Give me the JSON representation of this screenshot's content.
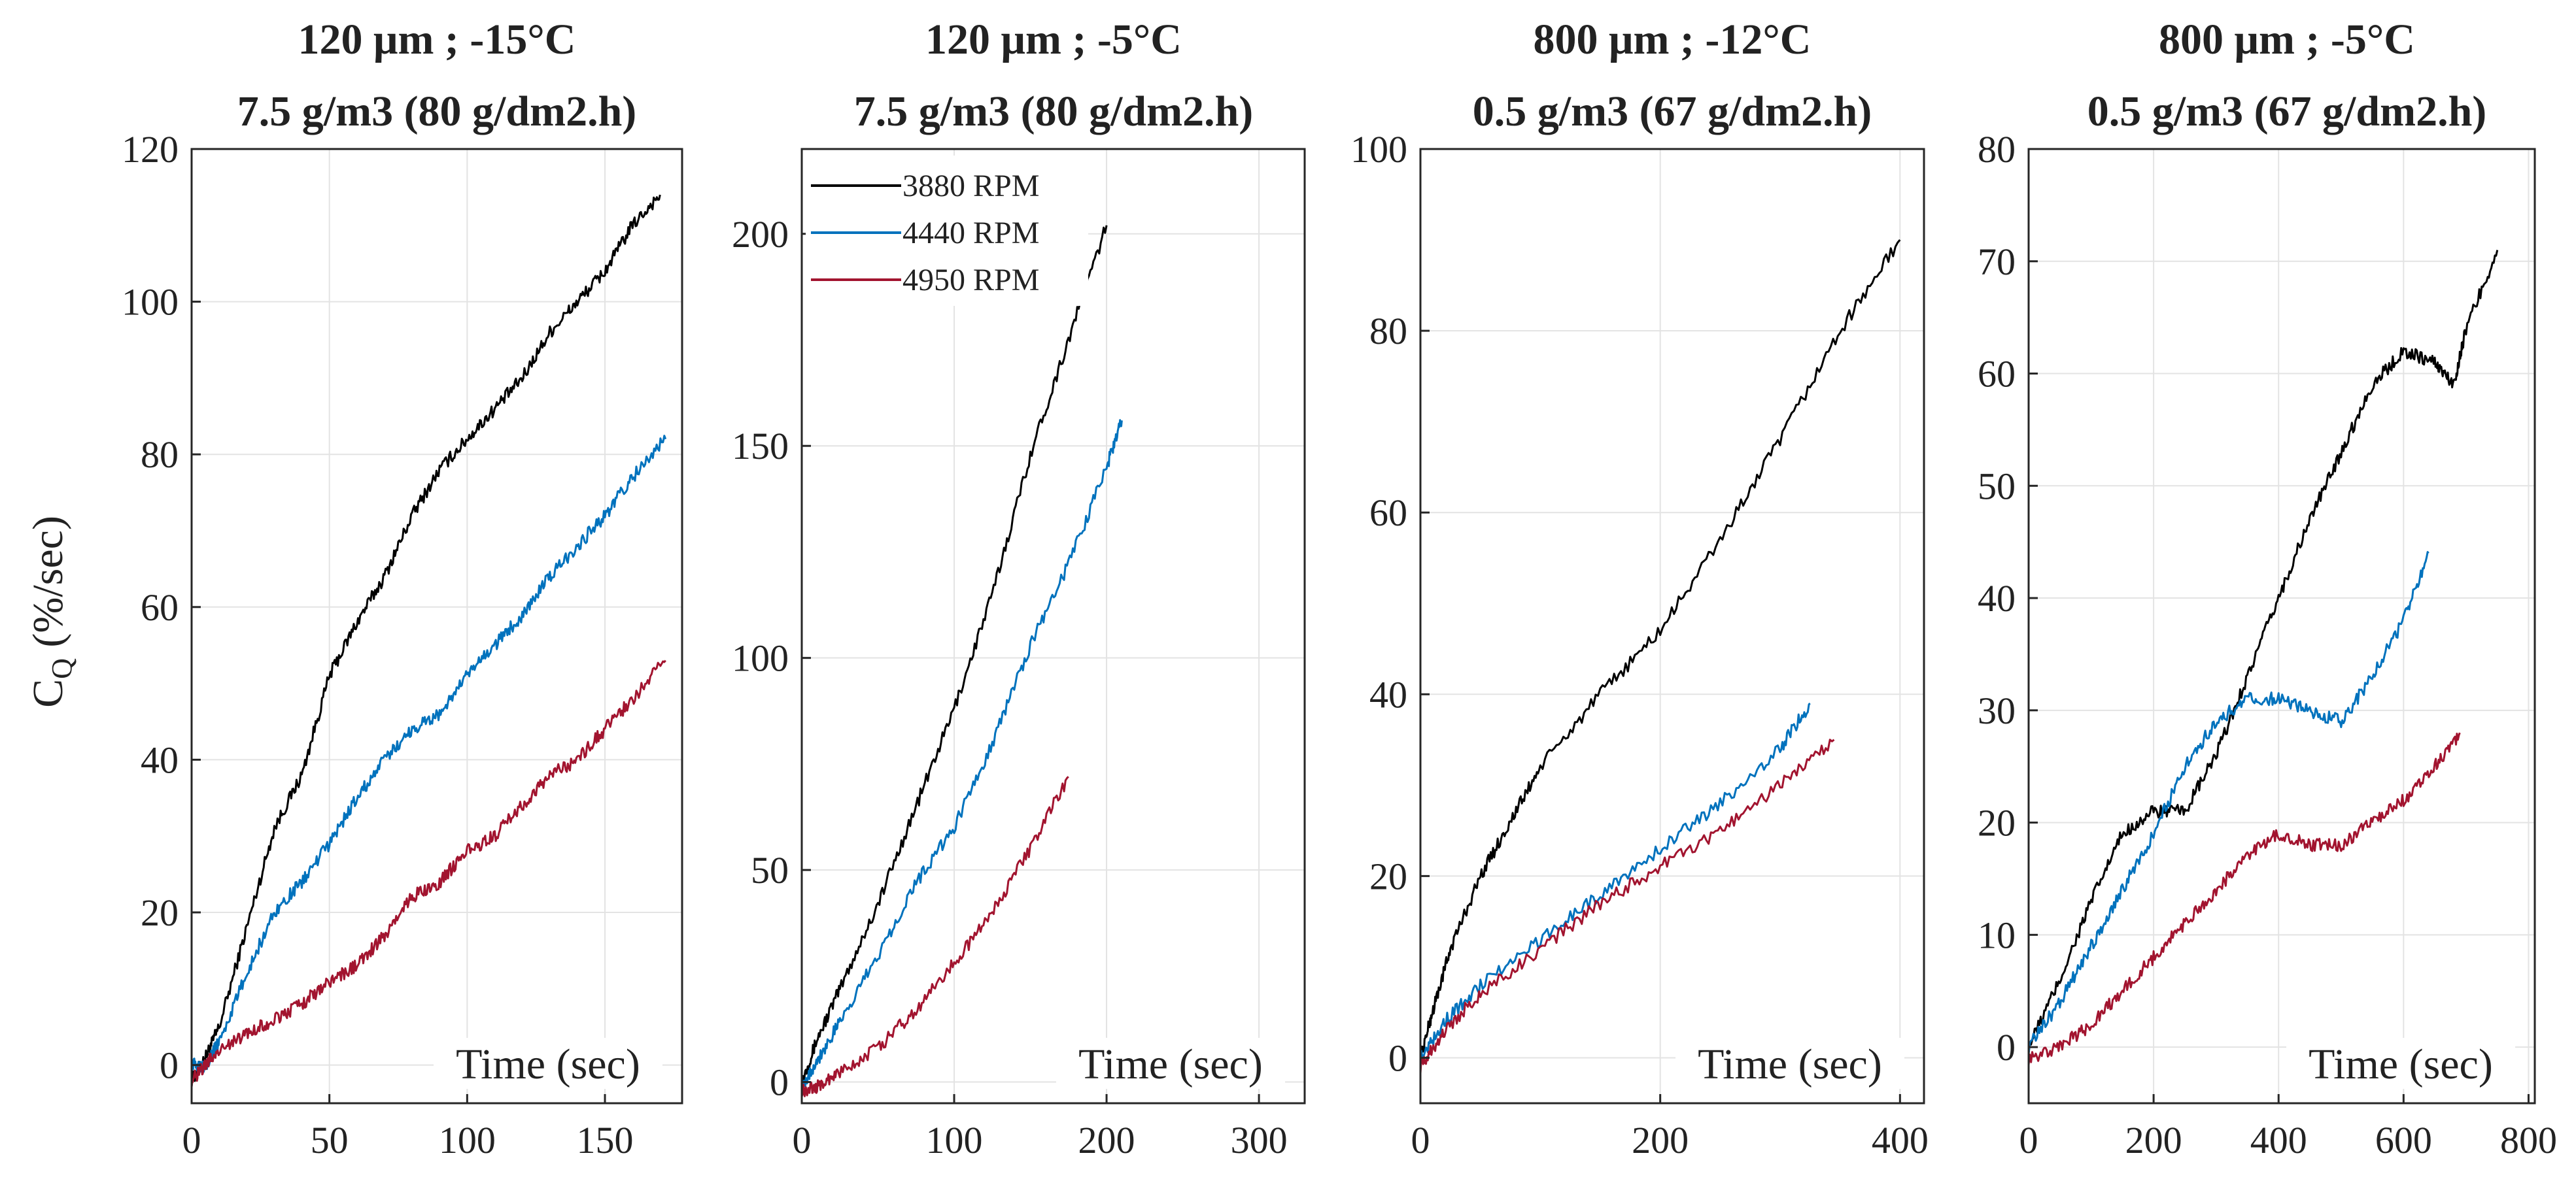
{
  "figure": {
    "ylabel": "C_Q (%/sec)",
    "ylabel_main": "C",
    "ylabel_sub": "Q",
    "ylabel_unit": " (%/sec)"
  },
  "legend": {
    "entries": [
      {
        "label": "3880 RPM",
        "color": "#000000"
      },
      {
        "label": "4440 RPM",
        "color": "#0072BD"
      },
      {
        "label": "4950 RPM",
        "color": "#A2142F"
      }
    ]
  },
  "chart_data": [
    {
      "type": "line",
      "title": "120 μm ; -15°C 7.5 g/m3 (80 g/dm2.h)",
      "title_line1": "120 μm ; -15°C",
      "title_line2": "7.5 g/m3 (80 g/dm2.h)",
      "xlabel": "Time (sec)",
      "ylabel": "C_Q (%/sec)",
      "xlim": [
        0,
        178
      ],
      "ylim": [
        -5,
        120
      ],
      "xticks": [
        0,
        50,
        100,
        150
      ],
      "yticks": [
        0,
        20,
        40,
        60,
        80,
        100,
        120
      ],
      "grid": true,
      "series": [
        {
          "name": "3880 RPM",
          "color": "#000000",
          "x": [
            0,
            5,
            10,
            20,
            30,
            40,
            50,
            60,
            70,
            80,
            90,
            100,
            110,
            120,
            130,
            140,
            150,
            160,
            170
          ],
          "y": [
            -2,
            1,
            5,
            18,
            31,
            38,
            51,
            58,
            64,
            72,
            78,
            82,
            86,
            90,
            96,
            100,
            104,
            110,
            114
          ]
        },
        {
          "name": "4440 RPM",
          "color": "#0072BD",
          "x": [
            0,
            5,
            10,
            20,
            30,
            40,
            50,
            60,
            70,
            80,
            90,
            100,
            110,
            120,
            130,
            140,
            150,
            160,
            172
          ],
          "y": [
            0,
            0,
            3,
            12,
            20,
            24,
            29,
            35,
            40,
            44,
            46,
            51,
            55,
            59,
            64,
            68,
            72,
            77,
            82
          ]
        },
        {
          "name": "4950 RPM",
          "color": "#A2142F",
          "x": [
            0,
            5,
            10,
            20,
            30,
            40,
            50,
            60,
            70,
            80,
            90,
            100,
            110,
            120,
            130,
            140,
            150,
            160,
            172
          ],
          "y": [
            -2,
            0,
            2,
            4,
            6,
            8,
            11,
            13,
            17,
            22,
            24,
            28,
            30,
            34,
            38,
            40,
            44,
            48,
            53
          ]
        }
      ]
    },
    {
      "type": "line",
      "title": "120 μm ; -5°C 7.5 g/m3 (80 g/dm2.h)",
      "title_line1": "120 μm ; -5°C",
      "title_line2": "7.5 g/m3 (80 g/dm2.h)",
      "xlabel": "Time (sec)",
      "ylabel": "",
      "xlim": [
        0,
        330
      ],
      "ylim": [
        -5,
        220
      ],
      "xticks": [
        0,
        100,
        200,
        300
      ],
      "yticks": [
        0,
        50,
        100,
        150,
        200
      ],
      "grid": true,
      "legend_position": "top-left",
      "series": [
        {
          "name": "3880 RPM",
          "color": "#000000",
          "x": [
            0,
            10,
            25,
            50,
            75,
            100,
            125,
            150,
            175,
            200
          ],
          "y": [
            0,
            10,
            22,
            42,
            65,
            88,
            115,
            148,
            175,
            202
          ]
        },
        {
          "name": "4440 RPM",
          "color": "#0072BD",
          "x": [
            0,
            10,
            25,
            50,
            75,
            100,
            125,
            150,
            175,
            200,
            210
          ],
          "y": [
            -1,
            5,
            14,
            30,
            47,
            60,
            80,
            103,
            122,
            145,
            156
          ]
        },
        {
          "name": "4950 RPM",
          "color": "#A2142F",
          "x": [
            0,
            10,
            25,
            50,
            75,
            100,
            125,
            150,
            175
          ],
          "y": [
            -2,
            -1,
            2,
            8,
            17,
            28,
            40,
            55,
            72
          ]
        }
      ]
    },
    {
      "type": "line",
      "title": "800 μm ; -12°C 0.5 g/m3 (67 g/dm2.h)",
      "title_line1": "800 μm ; -12°C",
      "title_line2": "0.5 g/m3 (67 g/dm2.h)",
      "xlabel": "Time (sec)",
      "ylabel": "",
      "xlim": [
        0,
        420
      ],
      "ylim": [
        -5,
        100
      ],
      "xticks": [
        0,
        200,
        400
      ],
      "yticks": [
        0,
        20,
        40,
        60,
        80,
        100
      ],
      "grid": true,
      "series": [
        {
          "name": "3880 RPM",
          "color": "#000000",
          "x": [
            0,
            10,
            25,
            50,
            75,
            100,
            150,
            200,
            250,
            300,
            350,
            400
          ],
          "y": [
            0,
            5,
            12,
            20,
            26,
            32,
            40,
            47,
            57,
            68,
            80,
            90
          ]
        },
        {
          "name": "4440 RPM",
          "color": "#0072BD",
          "x": [
            0,
            20,
            50,
            100,
            150,
            200,
            250,
            300,
            325
          ],
          "y": [
            0,
            4,
            8,
            13,
            18,
            23,
            28,
            34,
            39
          ]
        },
        {
          "name": "4950 RPM",
          "color": "#A2142F",
          "x": [
            0,
            20,
            50,
            100,
            150,
            200,
            250,
            300,
            345
          ],
          "y": [
            -1,
            3,
            7,
            12,
            17,
            21,
            25,
            30,
            35
          ]
        }
      ]
    },
    {
      "type": "line",
      "title": "800 μm ; -5°C 0.5 g/m3 (67 g/dm2.h)",
      "title_line1": "800 μm ; -5°C",
      "title_line2": "0.5 g/m3 (67 g/dm2.h)",
      "xlabel": "Time (sec)",
      "ylabel": "",
      "xlim": [
        0,
        810
      ],
      "ylim": [
        -5,
        80
      ],
      "xticks": [
        0,
        200,
        400,
        600,
        800
      ],
      "yticks": [
        0,
        10,
        20,
        30,
        40,
        50,
        60,
        70,
        80
      ],
      "grid": true,
      "series": [
        {
          "name": "3880 RPM",
          "color": "#000000",
          "x": [
            0,
            50,
            100,
            150,
            200,
            250,
            300,
            350,
            400,
            450,
            500,
            550,
            600,
            650,
            680,
            700,
            750
          ],
          "y": [
            0,
            6,
            13,
            19,
            21,
            21,
            26,
            33,
            40,
            47,
            53,
            59,
            62,
            61,
            59,
            64,
            71
          ]
        },
        {
          "name": "4440 RPM",
          "color": "#0072BD",
          "x": [
            0,
            50,
            100,
            150,
            200,
            250,
            300,
            350,
            400,
            450,
            500,
            550,
            600,
            640
          ],
          "y": [
            0,
            4,
            9,
            14,
            19,
            25,
            29,
            31,
            31,
            30,
            29,
            33,
            38,
            44
          ]
        },
        {
          "name": "4950 RPM",
          "color": "#A2142F",
          "x": [
            0,
            50,
            100,
            150,
            200,
            250,
            300,
            350,
            400,
            450,
            500,
            550,
            600,
            650,
            690
          ],
          "y": [
            -1,
            0,
            2,
            5,
            8,
            11,
            14,
            17,
            19,
            18,
            18,
            20,
            22,
            25,
            28
          ]
        }
      ]
    }
  ]
}
